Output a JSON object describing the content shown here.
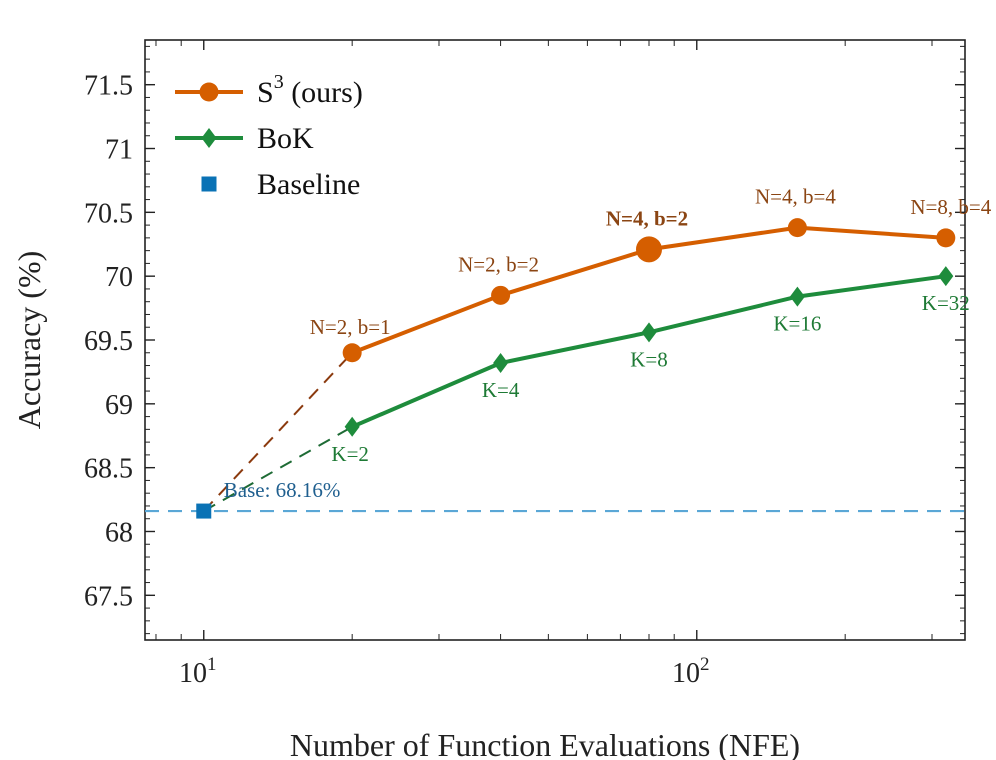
{
  "chart_data": {
    "type": "line",
    "xscale": "log",
    "xlabel": "Number of Function Evaluations (NFE)",
    "ylabel": "Accuracy (%)",
    "xlim": [
      7.6,
      350
    ],
    "ylim": [
      67.15,
      71.85
    ],
    "x_ticks": [
      {
        "value": 10,
        "base": "10",
        "exp": "1"
      },
      {
        "value": 100,
        "base": "10",
        "exp": "2"
      }
    ],
    "y_ticks": [
      {
        "value": 67.5,
        "label": "67.5"
      },
      {
        "value": 68,
        "label": "68"
      },
      {
        "value": 68.5,
        "label": "68.5"
      },
      {
        "value": 69,
        "label": "69"
      },
      {
        "value": 69.5,
        "label": "69.5"
      },
      {
        "value": 70,
        "label": "70"
      },
      {
        "value": 70.5,
        "label": "70.5"
      },
      {
        "value": 71,
        "label": "71"
      },
      {
        "value": 71.5,
        "label": "71.5"
      }
    ],
    "series": [
      {
        "name": "S3 (ours)",
        "legend_base": "S",
        "legend_sup": "3",
        "legend_rest": " (ours)",
        "marker": "circle",
        "color": "#d55e00",
        "label_color": "#8b4513",
        "x": [
          20,
          40,
          80,
          160,
          320
        ],
        "y": [
          69.4,
          69.85,
          70.21,
          70.38,
          70.3
        ],
        "labels": [
          "N=2, b=1",
          "N=2, b=2",
          "N=4, b=2",
          "N=4, b=4",
          "N=8, b=4"
        ],
        "highlight_index": 2
      },
      {
        "name": "BoK",
        "legend_base": "BoK",
        "marker": "diamond",
        "color": "#1e8c3c",
        "label_color": "#1e7a35",
        "x": [
          20,
          40,
          80,
          160,
          320
        ],
        "y": [
          68.82,
          69.32,
          69.56,
          69.84,
          70.0
        ],
        "labels": [
          "K=2",
          "K=4",
          "K=8",
          "K=16",
          "K=32"
        ]
      }
    ],
    "baseline": {
      "name": "Baseline",
      "x": 10,
      "y": 68.16,
      "label": "Base: 68.16%",
      "color": "#0a72b5",
      "line_color": "#5aa7d6",
      "label_color": "#1f5f8f"
    },
    "legend_position": "top-left"
  }
}
